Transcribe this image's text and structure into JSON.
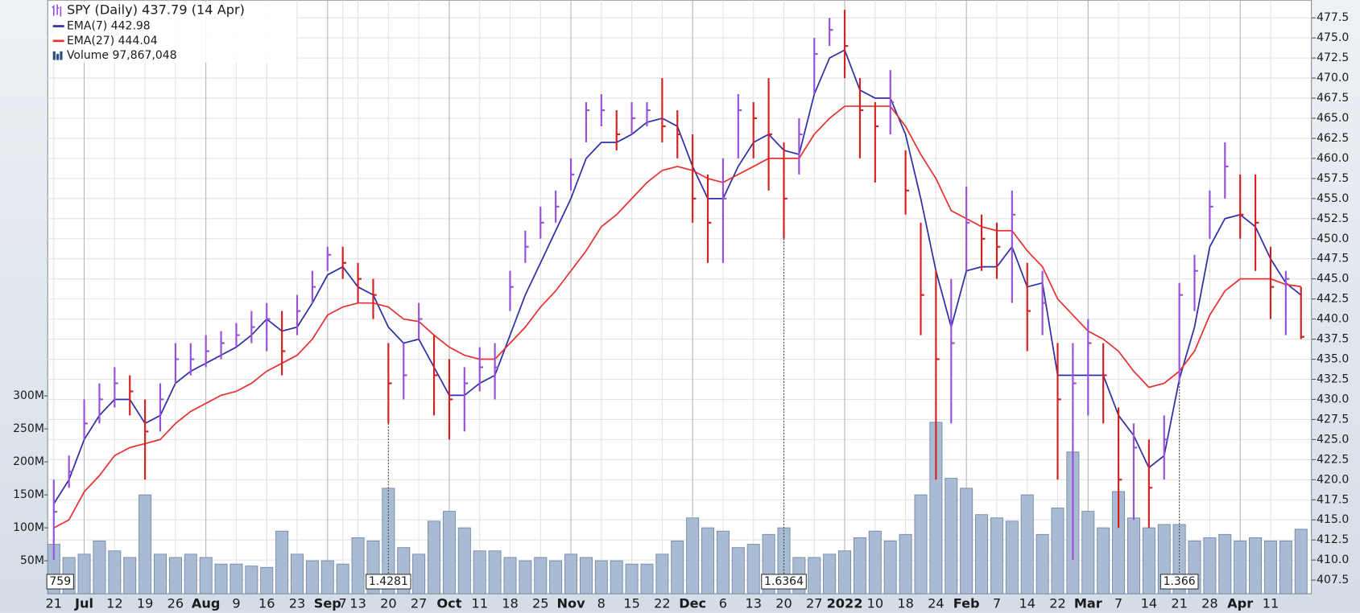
{
  "chart_data": {
    "type": "ohlc",
    "title": "SPY (Daily) 437.79 (14 Apr)",
    "up_color": "#9a4fd8",
    "down_color": "#d42020",
    "grid": true,
    "categories": [
      "21",
      null,
      "Jul",
      null,
      "12",
      null,
      "19",
      null,
      "26",
      null,
      "Aug",
      null,
      "9",
      null,
      "16",
      null,
      "23",
      null,
      "Sep",
      "7",
      "13",
      null,
      "20",
      null,
      "27",
      null,
      "Oct",
      null,
      "11",
      null,
      "18",
      null,
      "25",
      null,
      "Nov",
      null,
      "8",
      null,
      "15",
      null,
      "22",
      null,
      "Dec",
      null,
      "6",
      null,
      "13",
      null,
      "20",
      null,
      "27",
      null,
      "2022",
      null,
      "10",
      null,
      "18",
      null,
      "24",
      null,
      "Feb",
      null,
      "7",
      null,
      "14",
      null,
      "22",
      null,
      "Mar",
      null,
      "7",
      null,
      "14",
      null,
      "21",
      null,
      "28",
      null,
      "Apr",
      null,
      "11",
      null,
      null
    ],
    "high": [
      420,
      423,
      430,
      432,
      434,
      433,
      430,
      432,
      437,
      437,
      438,
      438.5,
      439.5,
      441,
      442,
      441,
      443,
      446,
      449,
      449,
      447,
      445,
      437,
      437,
      442,
      438,
      435,
      434,
      436.5,
      437,
      446,
      451,
      454,
      456,
      460,
      467,
      468,
      466,
      467,
      467,
      470,
      466,
      463,
      458,
      460,
      468,
      467,
      470,
      462,
      465,
      475,
      477.5,
      478.5,
      470,
      467,
      471,
      461,
      452,
      446,
      445,
      456.5,
      453,
      452,
      456,
      447,
      446,
      437,
      437,
      440,
      437,
      429,
      427,
      425,
      428,
      444.5,
      448,
      456,
      462,
      458,
      458,
      449,
      446,
      444
    ],
    "low": [
      410,
      419,
      425,
      427,
      429,
      428,
      420,
      426,
      432,
      433,
      434,
      435,
      436.5,
      437,
      436,
      433,
      438,
      442,
      446,
      445,
      442,
      440,
      427,
      430,
      437.5,
      428,
      425,
      426,
      431,
      430,
      441,
      447,
      450,
      452,
      456,
      462,
      464,
      461,
      463,
      464,
      462,
      460,
      452,
      447,
      447,
      460,
      460,
      456,
      450,
      458,
      468,
      474,
      470,
      460,
      457,
      463,
      453,
      438,
      420,
      427,
      446,
      446,
      445,
      442,
      436,
      438,
      420,
      410,
      428,
      427,
      414,
      415,
      414,
      420,
      432,
      441,
      450,
      455,
      450,
      446,
      440,
      438,
      437.5
    ],
    "close": [
      416,
      421,
      427,
      430,
      432,
      431,
      426,
      430,
      435,
      435,
      436,
      437,
      438,
      439,
      440,
      436,
      441,
      444,
      448,
      447,
      445,
      443,
      432,
      433,
      440,
      433,
      430,
      432,
      434,
      434,
      444,
      449,
      452,
      454,
      458,
      466,
      466,
      463,
      465,
      466,
      464,
      463,
      455,
      452,
      455,
      466,
      465,
      463,
      455,
      463,
      473,
      476,
      474,
      466,
      464,
      467,
      456,
      443,
      435,
      437,
      452,
      450,
      449,
      453,
      441,
      442,
      430,
      432,
      437,
      433,
      420,
      424,
      419,
      425,
      443,
      446,
      454,
      459,
      453,
      452,
      444,
      445,
      437.79
    ],
    "series": [
      {
        "name": "EMA(7) 442.98",
        "color": "#2e2ea8",
        "values": [
          417,
          420,
          425,
          428,
          430,
          430,
          427,
          428,
          432,
          433.5,
          434.5,
          435.5,
          436.5,
          438,
          440,
          438.5,
          439,
          442,
          445.5,
          446.5,
          444,
          443,
          439,
          437,
          437.5,
          434,
          430.5,
          430.5,
          432,
          433,
          438,
          443,
          447,
          451,
          455,
          460,
          462,
          462,
          463,
          464.5,
          465,
          464,
          459,
          455,
          455,
          459,
          462,
          463,
          461,
          460.5,
          468,
          472.5,
          473.5,
          468.5,
          467.5,
          467.5,
          463,
          455,
          446,
          439,
          446,
          446.5,
          446.5,
          449,
          444,
          444.5,
          433,
          433,
          433,
          433,
          428,
          425.5,
          421.5,
          423,
          432.5,
          439,
          449,
          452.5,
          453,
          451.5,
          447.5,
          444.5,
          442.98
        ]
      },
      {
        "name": "EMA(27) 444.04",
        "color": "#e83030",
        "values": [
          414,
          415,
          418.5,
          420.5,
          423,
          424,
          424.5,
          425,
          427,
          428.5,
          429.5,
          430.5,
          431,
          432,
          433.5,
          434.5,
          435.5,
          437.5,
          440.5,
          441.5,
          442,
          442,
          441.5,
          440,
          439.7,
          438,
          436.5,
          435.5,
          435,
          435,
          437,
          439,
          441.5,
          443.5,
          446,
          448.5,
          451.5,
          453,
          455,
          457,
          458.5,
          459,
          458.5,
          457.5,
          457,
          458,
          459,
          460,
          460,
          460,
          463,
          465,
          466.5,
          466.5,
          466.5,
          466.5,
          464,
          460.5,
          457.5,
          453.5,
          452.5,
          451.5,
          451,
          451,
          448.5,
          446.5,
          442.5,
          440.5,
          438.5,
          437.5,
          436,
          433.5,
          431.5,
          432,
          433.5,
          436,
          440.5,
          443.5,
          445,
          445,
          445,
          444.3,
          444.04
        ]
      },
      {
        "name": "Volume 97,867,048",
        "color": "#a8bbd2",
        "axis": "y2",
        "values": [
          75,
          55,
          60,
          80,
          65,
          55,
          150,
          60,
          55,
          60,
          55,
          45,
          45,
          42,
          40,
          95,
          60,
          50,
          50,
          45,
          85,
          80,
          160,
          70,
          60,
          110,
          125,
          100,
          65,
          65,
          55,
          50,
          55,
          50,
          60,
          55,
          50,
          50,
          45,
          45,
          60,
          80,
          115,
          100,
          95,
          70,
          75,
          90,
          100,
          55,
          55,
          60,
          65,
          85,
          95,
          80,
          90,
          150,
          260,
          175,
          160,
          120,
          115,
          110,
          150,
          90,
          130,
          215,
          125,
          100,
          155,
          115,
          100,
          105,
          105,
          80,
          85,
          90,
          80,
          85,
          80,
          80,
          97.867048
        ]
      }
    ],
    "annotations": [
      "759",
      "1.4281",
      "1.6364",
      "1.366"
    ],
    "ylim": [
      405.8,
      479.7
    ],
    "yticks": [
      407.5,
      {
        "value": 410,
        "label": "410.0"
      },
      412.5,
      {
        "value": 415,
        "label": "415.0"
      },
      417.5,
      {
        "value": 420,
        "label": "420.0"
      },
      422.5,
      {
        "value": 425,
        "label": "425.0"
      },
      427.5,
      {
        "value": 430,
        "label": "430.0"
      },
      432.5,
      {
        "value": 435,
        "label": "435.0"
      },
      437.5,
      {
        "value": 440,
        "label": "440.0"
      },
      442.5,
      {
        "value": 445,
        "label": "445.0"
      },
      447.5,
      {
        "value": 450,
        "label": "450.0"
      },
      452.5,
      {
        "value": 455,
        "label": "455.0"
      },
      457.5,
      {
        "value": 460,
        "label": "460.0"
      },
      462.5,
      {
        "value": 465,
        "label": "465.0"
      },
      467.5,
      {
        "value": 470,
        "label": "470.0"
      },
      472.5,
      {
        "value": 475,
        "label": "475.0"
      },
      477.5
    ],
    "y2lim": [
      0,
      900
    ],
    "y2ticks": [
      {
        "value": 50,
        "label": "50M"
      },
      {
        "value": 100,
        "label": "100M"
      },
      {
        "value": 150,
        "label": "150M"
      },
      {
        "value": 200,
        "label": "200M"
      },
      {
        "value": 250,
        "label": "250M"
      },
      {
        "value": 300,
        "label": "300M"
      }
    ]
  }
}
